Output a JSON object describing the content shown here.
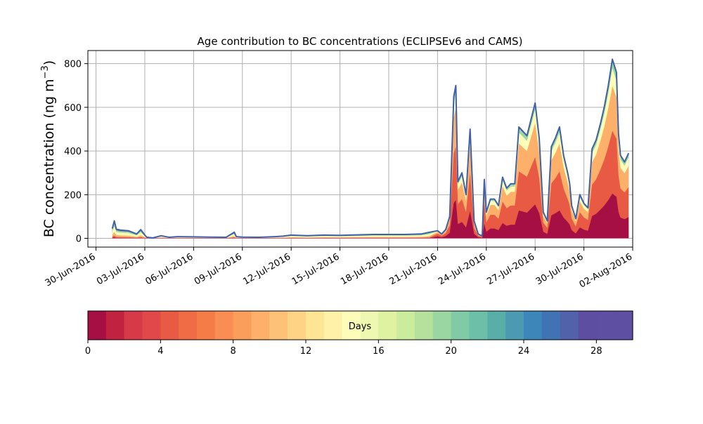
{
  "chart_data": {
    "type": "area",
    "title": "Age contribution to BC concentrations (ECLIPSEv6 and CAMS)",
    "ylabel_main": "BC concentration (ng m",
    "ylabel_sup": "−3",
    "ylabel_close": ")",
    "xlabel": "",
    "grid": true,
    "x_range": [
      "2016-06-29T12:00",
      "2016-08-02T00:00"
    ],
    "ylim": [
      -40,
      860
    ],
    "x_ticks": [
      "30-Jun-2016",
      "03-Jul-2016",
      "06-Jul-2016",
      "09-Jul-2016",
      "12-Jul-2016",
      "15-Jul-2016",
      "18-Jul-2016",
      "21-Jul-2016",
      "24-Jul-2016",
      "27-Jul-2016",
      "30-Jul-2016",
      "02-Aug-2016"
    ],
    "y_ticks": [
      0,
      200,
      400,
      600,
      800
    ],
    "series_note_age_bins_days": [
      0,
      30
    ],
    "total": {
      "x": [
        "2016-07-01T00:00",
        "2016-07-01T03:00",
        "2016-07-01T06:00",
        "2016-07-01T12:00",
        "2016-07-02T00:00",
        "2016-07-02T12:00",
        "2016-07-02T18:00",
        "2016-07-03T00:00",
        "2016-07-03T03:00",
        "2016-07-03T12:00",
        "2016-07-04T00:00",
        "2016-07-04T12:00",
        "2016-07-05T00:00",
        "2016-07-06T00:00",
        "2016-07-07T00:00",
        "2016-07-08T00:00",
        "2016-07-08T12:00",
        "2016-07-08T15:00",
        "2016-07-09T00:00",
        "2016-07-10T00:00",
        "2016-07-11T00:00",
        "2016-07-11T12:00",
        "2016-07-12T00:00",
        "2016-07-13T00:00",
        "2016-07-14T00:00",
        "2016-07-15T00:00",
        "2016-07-16T00:00",
        "2016-07-17T00:00",
        "2016-07-18T00:00",
        "2016-07-19T00:00",
        "2016-07-20T00:00",
        "2016-07-20T12:00",
        "2016-07-21T00:00",
        "2016-07-21T06:00",
        "2016-07-21T12:00",
        "2016-07-21T18:00",
        "2016-07-22T00:00",
        "2016-07-22T03:00",
        "2016-07-22T06:00",
        "2016-07-22T12:00",
        "2016-07-22T18:00",
        "2016-07-23T00:00",
        "2016-07-23T06:00",
        "2016-07-23T12:00",
        "2016-07-23T18:00",
        "2016-07-23T21:00",
        "2016-07-24T00:00",
        "2016-07-24T06:00",
        "2016-07-24T12:00",
        "2016-07-24T18:00",
        "2016-07-25T00:00",
        "2016-07-25T06:00",
        "2016-07-25T12:00",
        "2016-07-25T18:00",
        "2016-07-26T00:00",
        "2016-07-26T12:00",
        "2016-07-27T00:00",
        "2016-07-27T06:00",
        "2016-07-27T12:00",
        "2016-07-27T18:00",
        "2016-07-28T00:00",
        "2016-07-28T06:00",
        "2016-07-28T12:00",
        "2016-07-28T18:00",
        "2016-07-29T00:00",
        "2016-07-29T03:00",
        "2016-07-29T06:00",
        "2016-07-29T12:00",
        "2016-07-29T18:00",
        "2016-07-30T00:00",
        "2016-07-30T06:00",
        "2016-07-30T12:00",
        "2016-07-30T18:00",
        "2016-07-31T00:00",
        "2016-07-31T06:00",
        "2016-07-31T12:00",
        "2016-07-31T18:00",
        "2016-08-01T00:00",
        "2016-08-01T03:00",
        "2016-08-01T06:00",
        "2016-08-01T12:00",
        "2016-08-01T18:00"
      ],
      "y": [
        45,
        80,
        42,
        38,
        35,
        20,
        40,
        15,
        5,
        2,
        12,
        5,
        8,
        7,
        6,
        5,
        28,
        8,
        6,
        5,
        8,
        10,
        15,
        12,
        15,
        14,
        16,
        18,
        18,
        18,
        20,
        28,
        35,
        20,
        40,
        100,
        650,
        700,
        260,
        300,
        200,
        500,
        80,
        20,
        10,
        270,
        120,
        180,
        180,
        150,
        280,
        230,
        250,
        250,
        510,
        470,
        620,
        460,
        120,
        80,
        420,
        460,
        510,
        380,
        300,
        250,
        150,
        90,
        200,
        160,
        140,
        410,
        450,
        520,
        600,
        700,
        820,
        760,
        480,
        380,
        350,
        390
      ]
    },
    "bands": {
      "ages_days": [
        1,
        5,
        10,
        15,
        20,
        30
      ],
      "fractions_before_0721": [
        0.05,
        0.15,
        0.35,
        0.7,
        0.88,
        1.0
      ],
      "fractions_after_0721": [
        0.25,
        0.6,
        0.85,
        0.95,
        0.99,
        1.0
      ]
    },
    "colorbar": {
      "label": "Days",
      "min": 0,
      "max": 30,
      "ticks": [
        "0",
        "4",
        "8",
        "12",
        "16",
        "20",
        "24",
        "28"
      ],
      "colors": [
        "#a50f44",
        "#c0223f",
        "#d63a48",
        "#e0484a",
        "#e85a43",
        "#ef6c45",
        "#f57c46",
        "#f98d53",
        "#fa9e5b",
        "#fcb06a",
        "#fdc177",
        "#fed386",
        "#fee595",
        "#fff1a8",
        "#fdfcb8",
        "#eef8b0",
        "#def2a2",
        "#cbeb9d",
        "#b5e19c",
        "#9ad6a1",
        "#80cba5",
        "#6dbfa7",
        "#5aaea8",
        "#4b9ab1",
        "#3c86b9",
        "#3f73b3",
        "#5162ab",
        "#5e4ea1",
        "#5e4fa2",
        "#5e4fa2"
      ]
    },
    "colors": {
      "outline": "#4060a8",
      "grid": "#b0b0b0",
      "baseline": "#c07090"
    }
  }
}
